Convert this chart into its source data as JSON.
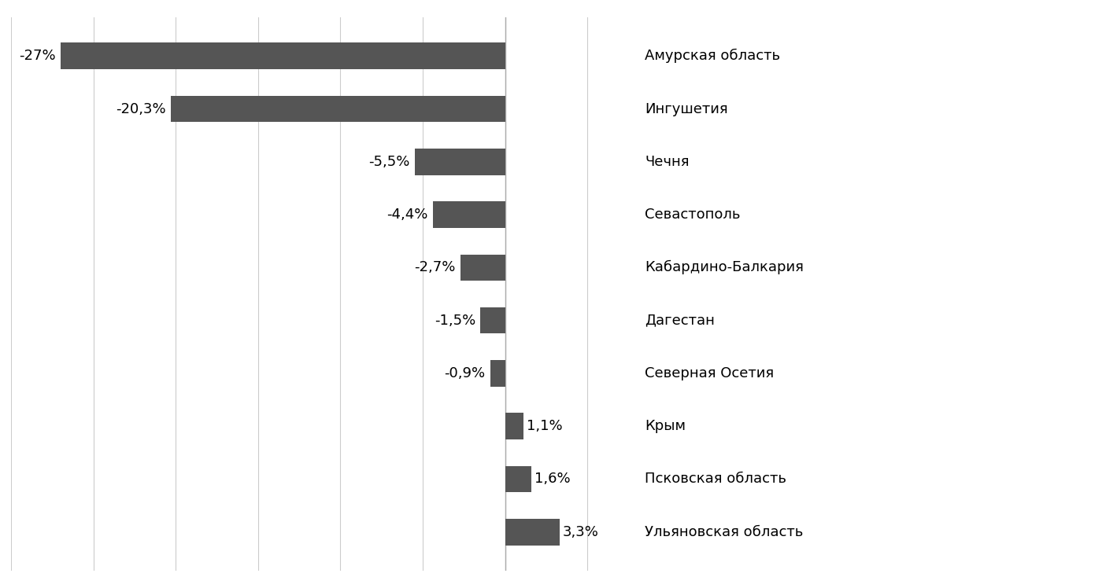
{
  "categories": [
    "Амурская область",
    "Ингушетия",
    "Чечня",
    "Севастополь",
    "Кабардино-Балкария",
    "Дагестан",
    "Северная Осетия",
    "Крым",
    "Псковская область",
    "Ульяновская область"
  ],
  "values": [
    -27.0,
    -20.3,
    -5.5,
    -4.4,
    -2.7,
    -1.5,
    -0.9,
    1.1,
    1.6,
    3.3
  ],
  "labels": [
    "-27%",
    "-20,3%",
    "-5,5%",
    "-4,4%",
    "-2,7%",
    "-1,5%",
    "-0,9%",
    "1,1%",
    "1,6%",
    "3,3%"
  ],
  "bar_color": "#555555",
  "background_color": "#ffffff",
  "xlim": [
    -30,
    8
  ],
  "label_fontsize": 13,
  "category_fontsize": 13,
  "bar_height": 0.5
}
